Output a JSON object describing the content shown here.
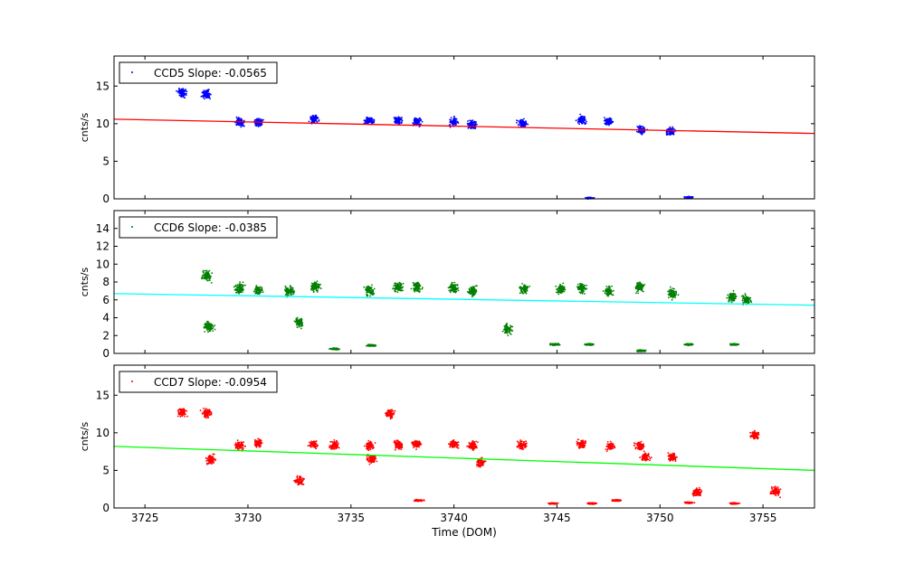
{
  "chart_data": [
    {
      "type": "scatter",
      "ylabel": "cnts/s",
      "xlim": [
        3723.5,
        3757.5
      ],
      "ylim": [
        0,
        19
      ],
      "yticks": [
        0,
        5,
        10,
        15
      ],
      "legend_location": "upper-left",
      "series": [
        {
          "name": "CCD5 Slope: -0.0565",
          "color": "#0000ff",
          "clusters": [
            {
              "x": 3726.8,
              "y": 14.1
            },
            {
              "x": 3728.0,
              "y": 13.9
            },
            {
              "x": 3729.6,
              "y": 10.2
            },
            {
              "x": 3730.5,
              "y": 10.1
            },
            {
              "x": 3733.2,
              "y": 10.6
            },
            {
              "x": 3735.9,
              "y": 10.4
            },
            {
              "x": 3737.3,
              "y": 10.4
            },
            {
              "x": 3738.2,
              "y": 10.3
            },
            {
              "x": 3740.0,
              "y": 10.2
            },
            {
              "x": 3740.9,
              "y": 9.9
            },
            {
              "x": 3743.3,
              "y": 10.0
            },
            {
              "x": 3746.2,
              "y": 10.5
            },
            {
              "x": 3747.5,
              "y": 10.3
            },
            {
              "x": 3749.1,
              "y": 9.2
            },
            {
              "x": 3750.5,
              "y": 9.0
            },
            {
              "x": 3746.6,
              "y": 0.1
            },
            {
              "x": 3751.4,
              "y": 0.2
            }
          ]
        }
      ],
      "fit_line": {
        "color": "#ff0000",
        "x": [
          3723.5,
          3757.5
        ],
        "y": [
          10.6,
          8.7
        ]
      }
    },
    {
      "type": "scatter",
      "ylabel": "cnts/s",
      "xlim": [
        3723.5,
        3757.5
      ],
      "ylim": [
        0,
        16
      ],
      "yticks": [
        0,
        2,
        4,
        6,
        8,
        10,
        12,
        14
      ],
      "legend_location": "upper-left",
      "series": [
        {
          "name": "CCD6 Slope: -0.0385",
          "color": "#007f00",
          "clusters": [
            {
              "x": 3728.0,
              "y": 8.7
            },
            {
              "x": 3728.1,
              "y": 3.0
            },
            {
              "x": 3729.6,
              "y": 7.3
            },
            {
              "x": 3730.5,
              "y": 7.1
            },
            {
              "x": 3732.0,
              "y": 7.0
            },
            {
              "x": 3732.5,
              "y": 3.5
            },
            {
              "x": 3733.3,
              "y": 7.5
            },
            {
              "x": 3734.2,
              "y": 0.5
            },
            {
              "x": 3735.9,
              "y": 7.0
            },
            {
              "x": 3736.0,
              "y": 0.9
            },
            {
              "x": 3737.3,
              "y": 7.4
            },
            {
              "x": 3738.2,
              "y": 7.5
            },
            {
              "x": 3740.0,
              "y": 7.3
            },
            {
              "x": 3740.9,
              "y": 7.0
            },
            {
              "x": 3742.6,
              "y": 2.7
            },
            {
              "x": 3743.4,
              "y": 7.2
            },
            {
              "x": 3744.9,
              "y": 1.0
            },
            {
              "x": 3745.2,
              "y": 7.2
            },
            {
              "x": 3746.2,
              "y": 7.3
            },
            {
              "x": 3746.6,
              "y": 1.0
            },
            {
              "x": 3747.5,
              "y": 7.0
            },
            {
              "x": 3749.1,
              "y": 0.3
            },
            {
              "x": 3749.0,
              "y": 7.4
            },
            {
              "x": 3750.6,
              "y": 6.7
            },
            {
              "x": 3751.4,
              "y": 1.0
            },
            {
              "x": 3753.5,
              "y": 6.3
            },
            {
              "x": 3753.6,
              "y": 1.0
            },
            {
              "x": 3754.2,
              "y": 6.0
            }
          ]
        }
      ],
      "fit_line": {
        "color": "#00ffff",
        "x": [
          3723.5,
          3757.5
        ],
        "y": [
          6.7,
          5.4
        ]
      }
    },
    {
      "type": "scatter",
      "ylabel": "cnts/s",
      "xlabel": "Time (DOM)",
      "xlim": [
        3723.5,
        3757.5
      ],
      "ylim": [
        0,
        19
      ],
      "yticks": [
        0,
        5,
        10,
        15
      ],
      "xticks": [
        3725,
        3730,
        3735,
        3740,
        3745,
        3750,
        3755
      ],
      "legend_location": "upper-left",
      "series": [
        {
          "name": "CCD7 Slope: -0.0954",
          "color": "#ff0000",
          "clusters": [
            {
              "x": 3726.8,
              "y": 12.7
            },
            {
              "x": 3728.0,
              "y": 12.6
            },
            {
              "x": 3728.2,
              "y": 6.4
            },
            {
              "x": 3729.6,
              "y": 8.3
            },
            {
              "x": 3730.5,
              "y": 8.6
            },
            {
              "x": 3732.5,
              "y": 3.6
            },
            {
              "x": 3733.2,
              "y": 8.5
            },
            {
              "x": 3734.2,
              "y": 8.4
            },
            {
              "x": 3735.9,
              "y": 8.3
            },
            {
              "x": 3736.0,
              "y": 6.5
            },
            {
              "x": 3736.9,
              "y": 12.5
            },
            {
              "x": 3737.3,
              "y": 8.4
            },
            {
              "x": 3738.2,
              "y": 8.5
            },
            {
              "x": 3738.3,
              "y": 1.0
            },
            {
              "x": 3740.0,
              "y": 8.5
            },
            {
              "x": 3740.9,
              "y": 8.3
            },
            {
              "x": 3741.3,
              "y": 6.0
            },
            {
              "x": 3743.3,
              "y": 8.4
            },
            {
              "x": 3744.8,
              "y": 0.6
            },
            {
              "x": 3746.2,
              "y": 8.5
            },
            {
              "x": 3746.7,
              "y": 0.6
            },
            {
              "x": 3747.6,
              "y": 8.2
            },
            {
              "x": 3747.9,
              "y": 1.0
            },
            {
              "x": 3749.0,
              "y": 8.2
            },
            {
              "x": 3749.3,
              "y": 6.8
            },
            {
              "x": 3750.6,
              "y": 6.8
            },
            {
              "x": 3751.4,
              "y": 0.7
            },
            {
              "x": 3751.8,
              "y": 2.1
            },
            {
              "x": 3753.6,
              "y": 0.6
            },
            {
              "x": 3754.6,
              "y": 9.7
            },
            {
              "x": 3755.6,
              "y": 2.2
            }
          ]
        }
      ],
      "fit_line": {
        "color": "#00ff00",
        "x": [
          3723.5,
          3757.5
        ],
        "y": [
          8.2,
          5.0
        ]
      }
    }
  ]
}
